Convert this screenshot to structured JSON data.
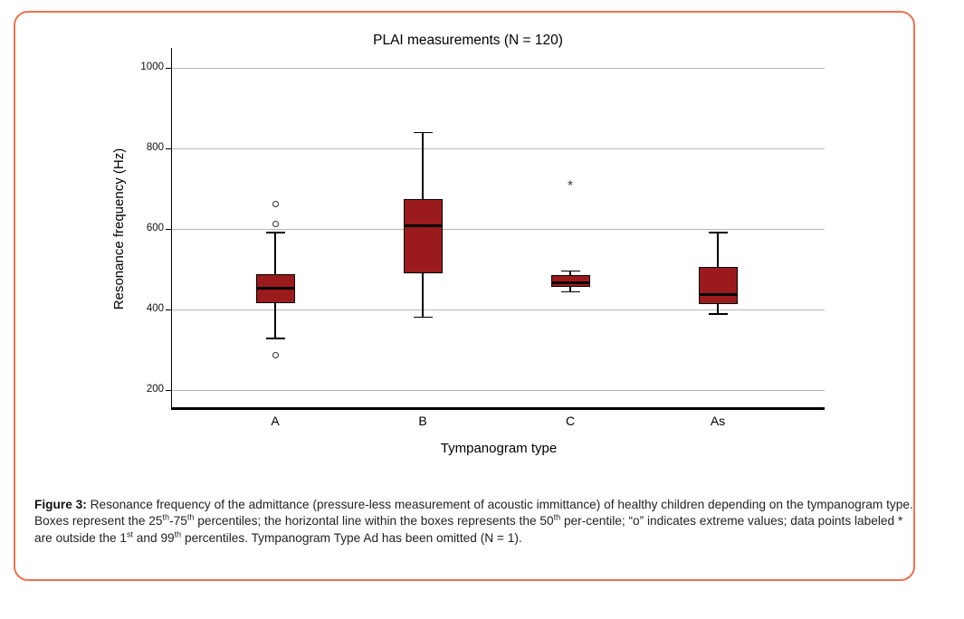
{
  "page": {
    "background_color": "#ffffff",
    "frame_border_color": "#ED7152"
  },
  "chart_data": {
    "type": "boxplot",
    "title": "PLAI measurements (N = 120)",
    "xlabel": "Tympanogram type",
    "ylabel": "Resonance frequency (Hz)",
    "categories": [
      "A",
      "B",
      "C",
      "As"
    ],
    "y_ticks": [
      200,
      400,
      600,
      800,
      1000
    ],
    "y_axis_range": [
      155,
      1050
    ],
    "grid": "horizontal-at-ticks",
    "legend": "none",
    "box_fill_color": "#9B1B1D",
    "gridline_color": "#b8b8b8",
    "series": [
      {
        "category": "A",
        "whisker_low": 330,
        "q1": 417,
        "median": 453,
        "q3": 490,
        "whisker_high": 592,
        "outliers_o": [
          662,
          614,
          288
        ],
        "extremes_star": []
      },
      {
        "category": "B",
        "whisker_low": 382,
        "q1": 492,
        "median": 610,
        "q3": 675,
        "whisker_high": 840,
        "outliers_o": [],
        "extremes_star": []
      },
      {
        "category": "C",
        "whisker_low": 445,
        "q1": 458,
        "median": 467,
        "q3": 486,
        "whisker_high": 497,
        "outliers_o": [],
        "extremes_star": [
          715
        ]
      },
      {
        "category": "As",
        "whisker_low": 390,
        "q1": 415,
        "median": 438,
        "q3": 507,
        "whisker_high": 592,
        "outliers_o": [],
        "extremes_star": []
      }
    ]
  },
  "caption": {
    "segments": [
      {
        "text": "Figure 3:",
        "bold": true
      },
      {
        "text": " Resonance frequency of the admittance (pressure-less measurement of acoustic immittance) of healthy children depending on the tympanogram type. Boxes represent the 25"
      },
      {
        "text": "th",
        "sup": true
      },
      {
        "text": "-75"
      },
      {
        "text": "th",
        "sup": true
      },
      {
        "text": " percentiles; the horizontal line within the boxes represents the 50"
      },
      {
        "text": "th",
        "sup": true
      },
      {
        "text": " per-centile; “o” indicates extreme values; data points labeled * are outside the 1"
      },
      {
        "text": "st",
        "sup": true
      },
      {
        "text": " and 99"
      },
      {
        "text": "th",
        "sup": true
      },
      {
        "text": " percentiles. Tympanogram Type Ad has been omitted (N = 1)."
      }
    ]
  }
}
